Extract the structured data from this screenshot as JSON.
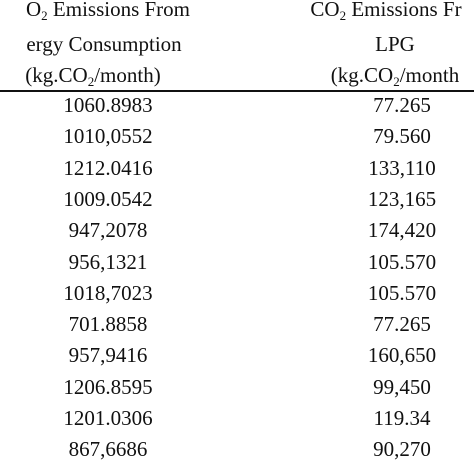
{
  "table": {
    "columns": [
      {
        "header_line1_prefix": "O",
        "header_line1_sub": "2",
        "header_line1_suffix": " Emissions From",
        "header_line2": "ergy Consumption",
        "header_line3_prefix": "(kg.CO",
        "header_line3_sub": "2",
        "header_line3_suffix": "/month)"
      },
      {
        "header_line1_prefix": "CO",
        "header_line1_sub": "2",
        "header_line1_suffix": " Emissions Fr",
        "header_line2": "LPG",
        "header_line3_prefix": "(kg.CO",
        "header_line3_sub": "2",
        "header_line3_suffix": "/month"
      }
    ],
    "rows": [
      [
        "1060.8983",
        "77.265"
      ],
      [
        "1010,0552",
        "79.560"
      ],
      [
        "1212.0416",
        "133,110"
      ],
      [
        "1009.0542",
        "123,165"
      ],
      [
        "947,2078",
        "174,420"
      ],
      [
        "956,1321",
        "105.570"
      ],
      [
        "1018,7023",
        "105.570"
      ],
      [
        "701.8858",
        "77.265"
      ],
      [
        "957,9416",
        "160,650"
      ],
      [
        "1206.8595",
        "99,450"
      ],
      [
        "1201.0306",
        "119.34"
      ],
      [
        "867,6686",
        "90,270"
      ]
    ]
  }
}
